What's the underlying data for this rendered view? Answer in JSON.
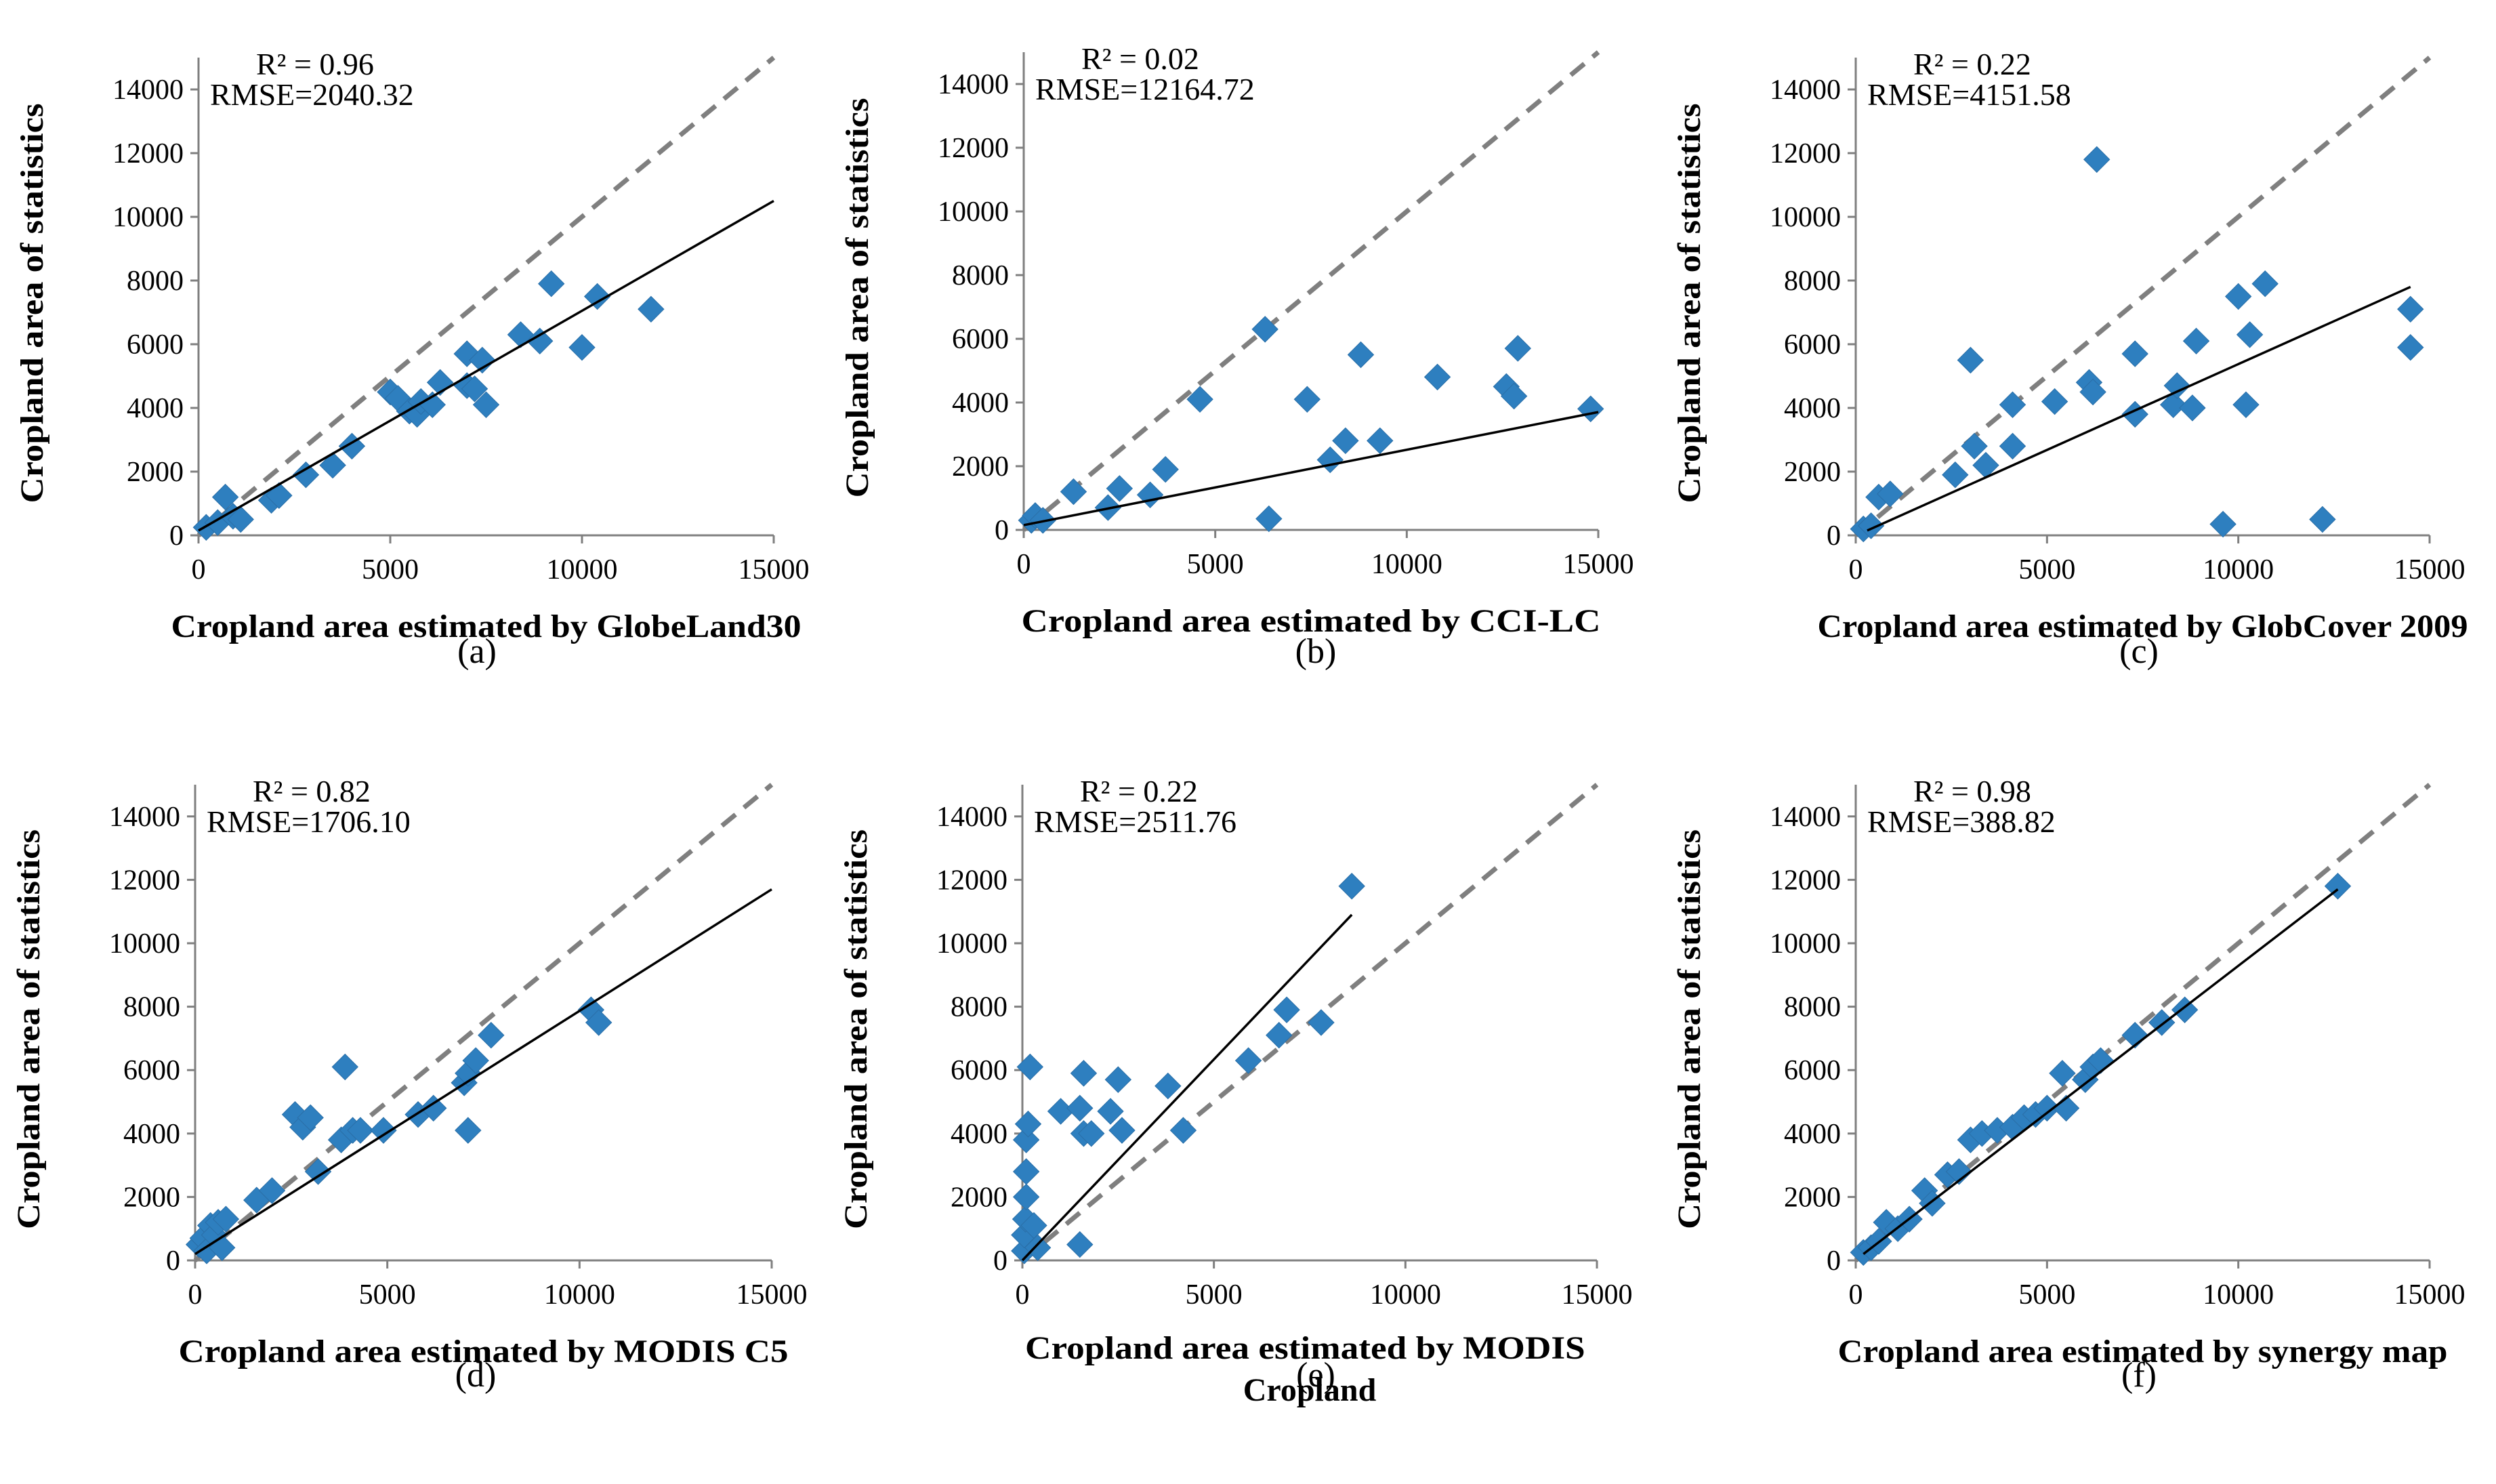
{
  "figure": {
    "colors": {
      "marker": "#2E7FBF",
      "marker_stroke": "#2A6FA8",
      "reference_line": "#7F7F7F",
      "trend_line": "#000000",
      "axis": "#7F7F7F"
    }
  },
  "chart_data": [
    {
      "type": "scatter",
      "panel_label": "(a)",
      "xlabel": "Cropland area estimated by GlobeLand30",
      "ylabel": "Cropland area of statistics",
      "r2_text": "R² = 0.96",
      "rmse_text": "RMSE=2040.32",
      "xlim": [
        0,
        15000
      ],
      "ylim": [
        0,
        15000
      ],
      "xticks": [
        "0",
        "5000",
        "10000",
        "15000"
      ],
      "yticks": [
        "0",
        "2000",
        "4000",
        "6000",
        "8000",
        "10000",
        "12000",
        "14000"
      ],
      "reference_line": {
        "from": [
          0,
          0
        ],
        "to": [
          15000,
          15000
        ],
        "style": "dashed"
      },
      "trend_line": {
        "from": [
          0,
          150
        ],
        "to": [
          15000,
          10500
        ],
        "style": "solid"
      },
      "points": [
        [
          200,
          250
        ],
        [
          500,
          400
        ],
        [
          700,
          1200
        ],
        [
          900,
          600
        ],
        [
          1100,
          500
        ],
        [
          1900,
          1100
        ],
        [
          2100,
          1250
        ],
        [
          2800,
          1900
        ],
        [
          3500,
          2200
        ],
        [
          4000,
          2800
        ],
        [
          5000,
          4500
        ],
        [
          5200,
          4300
        ],
        [
          5500,
          3900
        ],
        [
          5700,
          3800
        ],
        [
          5800,
          4200
        ],
        [
          6100,
          4100
        ],
        [
          6300,
          4800
        ],
        [
          7000,
          5700
        ],
        [
          7000,
          4700
        ],
        [
          7200,
          4600
        ],
        [
          7400,
          5500
        ],
        [
          7500,
          4100
        ],
        [
          8400,
          6300
        ],
        [
          8900,
          6100
        ],
        [
          9200,
          7900
        ],
        [
          10000,
          5900
        ],
        [
          10400,
          7500
        ],
        [
          11800,
          7100
        ]
      ]
    },
    {
      "type": "scatter",
      "panel_label": "(b)",
      "xlabel": "Cropland area estimated by  CCI-LC",
      "ylabel": "Cropland area of statistics",
      "r2_text": "R² = 0.02",
      "rmse_text": "RMSE=12164.72",
      "xlim": [
        0,
        15000
      ],
      "ylim": [
        0,
        15000
      ],
      "xticks": [
        "0",
        "5000",
        "10000",
        "15000"
      ],
      "yticks": [
        "0",
        "2000",
        "4000",
        "6000",
        "8000",
        "10000",
        "12000",
        "14000"
      ],
      "reference_line": {
        "from": [
          0,
          0
        ],
        "to": [
          15000,
          15000
        ],
        "style": "dashed"
      },
      "trend_line": {
        "from": [
          0,
          150
        ],
        "to": [
          15000,
          3700
        ],
        "style": "solid"
      },
      "points": [
        [
          200,
          300
        ],
        [
          300,
          450
        ],
        [
          500,
          300
        ],
        [
          1300,
          1200
        ],
        [
          2200,
          700
        ],
        [
          2500,
          1300
        ],
        [
          3300,
          1100
        ],
        [
          3700,
          1900
        ],
        [
          4600,
          4100
        ],
        [
          6300,
          6300
        ],
        [
          6400,
          350
        ],
        [
          7400,
          4100
        ],
        [
          8000,
          2200
        ],
        [
          8400,
          2800
        ],
        [
          8800,
          5500
        ],
        [
          9300,
          2800
        ],
        [
          10800,
          4800
        ],
        [
          12600,
          4500
        ],
        [
          12800,
          4200
        ],
        [
          12900,
          5700
        ],
        [
          14800,
          3800
        ]
      ]
    },
    {
      "type": "scatter",
      "panel_label": "(c)",
      "xlabel": "Cropland area estimated by GlobCover 2009",
      "ylabel": "Cropland area of statistics",
      "r2_text": "R² = 0.22",
      "rmse_text": "RMSE=4151.58",
      "xlim": [
        0,
        15000
      ],
      "ylim": [
        0,
        15000
      ],
      "xticks": [
        "0",
        "5000",
        "10000",
        "15000"
      ],
      "yticks": [
        "0",
        "2000",
        "4000",
        "6000",
        "8000",
        "10000",
        "12000",
        "14000"
      ],
      "reference_line": {
        "from": [
          0,
          0
        ],
        "to": [
          15000,
          15000
        ],
        "style": "dashed"
      },
      "trend_line": {
        "from": [
          300,
          150
        ],
        "to": [
          14500,
          7800
        ],
        "style": "solid"
      },
      "points": [
        [
          200,
          200
        ],
        [
          400,
          300
        ],
        [
          600,
          1200
        ],
        [
          900,
          1300
        ],
        [
          2600,
          1900
        ],
        [
          3000,
          5500
        ],
        [
          3100,
          2800
        ],
        [
          3400,
          2200
        ],
        [
          4100,
          4100
        ],
        [
          4100,
          2800
        ],
        [
          5200,
          4200
        ],
        [
          6100,
          4800
        ],
        [
          6200,
          4500
        ],
        [
          6300,
          11800
        ],
        [
          7300,
          5700
        ],
        [
          7300,
          3800
        ],
        [
          8300,
          4100
        ],
        [
          8400,
          4700
        ],
        [
          8800,
          4000
        ],
        [
          8900,
          6100
        ],
        [
          9600,
          350
        ],
        [
          10000,
          7500
        ],
        [
          10200,
          4100
        ],
        [
          10300,
          6300
        ],
        [
          10700,
          7900
        ],
        [
          12200,
          500
        ],
        [
          14500,
          7100
        ],
        [
          14500,
          5900
        ]
      ]
    },
    {
      "type": "scatter",
      "panel_label": "(d)",
      "xlabel": "Cropland area estimated by MODIS C5",
      "ylabel": "Cropland area of statistics",
      "r2_text": "R² = 0.82",
      "rmse_text": "RMSE=1706.10",
      "xlim": [
        0,
        15000
      ],
      "ylim": [
        0,
        15000
      ],
      "xticks": [
        "0",
        "5000",
        "10000",
        "15000"
      ],
      "yticks": [
        "0",
        "2000",
        "4000",
        "6000",
        "8000",
        "10000",
        "12000",
        "14000"
      ],
      "reference_line": {
        "from": [
          0,
          0
        ],
        "to": [
          15000,
          15000
        ],
        "style": "dashed"
      },
      "trend_line": {
        "from": [
          0,
          200
        ],
        "to": [
          15000,
          11700
        ],
        "style": "solid"
      },
      "points": [
        [
          100,
          500
        ],
        [
          200,
          700
        ],
        [
          300,
          300
        ],
        [
          400,
          1100
        ],
        [
          500,
          800
        ],
        [
          600,
          1200
        ],
        [
          700,
          400
        ],
        [
          800,
          1300
        ],
        [
          1600,
          1900
        ],
        [
          2000,
          2200
        ],
        [
          3200,
          2800
        ],
        [
          2600,
          4600
        ],
        [
          2800,
          4200
        ],
        [
          3000,
          4500
        ],
        [
          3800,
          3800
        ],
        [
          3900,
          6100
        ],
        [
          4100,
          4100
        ],
        [
          4300,
          4100
        ],
        [
          4900,
          4100
        ],
        [
          5800,
          4600
        ],
        [
          6200,
          4800
        ],
        [
          7000,
          5600
        ],
        [
          7100,
          5900
        ],
        [
          7100,
          4100
        ],
        [
          7300,
          6300
        ],
        [
          7700,
          7100
        ],
        [
          10300,
          7900
        ],
        [
          10500,
          7500
        ]
      ]
    },
    {
      "type": "scatter",
      "panel_label": "(e)",
      "xlabel": "Cropland area estimated by  MODIS Cropland",
      "ylabel": "Cropland area of statistics",
      "r2_text": "R² = 0.22",
      "rmse_text": "RMSE=2511.76",
      "xlim": [
        0,
        15000
      ],
      "ylim": [
        0,
        15000
      ],
      "xticks": [
        "0",
        "5000",
        "10000",
        "15000"
      ],
      "yticks": [
        "0",
        "2000",
        "4000",
        "6000",
        "8000",
        "10000",
        "12000",
        "14000"
      ],
      "reference_line": {
        "from": [
          0,
          0
        ],
        "to": [
          15000,
          15000
        ],
        "style": "dashed"
      },
      "trend_line": {
        "from": [
          0,
          0
        ],
        "to": [
          8600,
          10900
        ],
        "style": "solid"
      },
      "points": [
        [
          50,
          300
        ],
        [
          50,
          800
        ],
        [
          80,
          1300
        ],
        [
          100,
          2000
        ],
        [
          100,
          2800
        ],
        [
          100,
          3800
        ],
        [
          150,
          4300
        ],
        [
          200,
          6100
        ],
        [
          300,
          1100
        ],
        [
          400,
          400
        ],
        [
          1000,
          4700
        ],
        [
          1500,
          500
        ],
        [
          1500,
          4800
        ],
        [
          1600,
          4000
        ],
        [
          1600,
          5900
        ],
        [
          1800,
          4000
        ],
        [
          2300,
          4700
        ],
        [
          2500,
          5700
        ],
        [
          2600,
          4100
        ],
        [
          3800,
          5500
        ],
        [
          4200,
          4100
        ],
        [
          5900,
          6300
        ],
        [
          6700,
          7100
        ],
        [
          6900,
          7900
        ],
        [
          7800,
          7500
        ],
        [
          8600,
          11800
        ]
      ]
    },
    {
      "type": "scatter",
      "panel_label": "(f)",
      "xlabel": "Cropland area estimated by synergy map",
      "ylabel": "Cropland area of statistics",
      "r2_text": "R² = 0.98",
      "rmse_text": "RMSE=388.82",
      "xlim": [
        0,
        15000
      ],
      "ylim": [
        0,
        15000
      ],
      "xticks": [
        "0",
        "5000",
        "10000",
        "15000"
      ],
      "yticks": [
        "0",
        "2000",
        "4000",
        "6000",
        "8000",
        "10000",
        "12000",
        "14000"
      ],
      "reference_line": {
        "from": [
          0,
          0
        ],
        "to": [
          15000,
          15000
        ],
        "style": "dashed"
      },
      "trend_line": {
        "from": [
          200,
          200
        ],
        "to": [
          12600,
          11700
        ],
        "style": "solid"
      },
      "points": [
        [
          200,
          250
        ],
        [
          400,
          400
        ],
        [
          600,
          600
        ],
        [
          800,
          1200
        ],
        [
          1100,
          1000
        ],
        [
          1400,
          1300
        ],
        [
          1800,
          2200
        ],
        [
          2000,
          1800
        ],
        [
          2400,
          2700
        ],
        [
          2700,
          2800
        ],
        [
          3000,
          3800
        ],
        [
          3300,
          4000
        ],
        [
          3700,
          4100
        ],
        [
          4100,
          4200
        ],
        [
          4400,
          4500
        ],
        [
          4700,
          4600
        ],
        [
          5000,
          4800
        ],
        [
          5400,
          5900
        ],
        [
          5500,
          4800
        ],
        [
          6000,
          5700
        ],
        [
          6200,
          6100
        ],
        [
          6400,
          6300
        ],
        [
          7300,
          7100
        ],
        [
          8000,
          7500
        ],
        [
          8600,
          7900
        ],
        [
          12600,
          11800
        ]
      ]
    }
  ]
}
